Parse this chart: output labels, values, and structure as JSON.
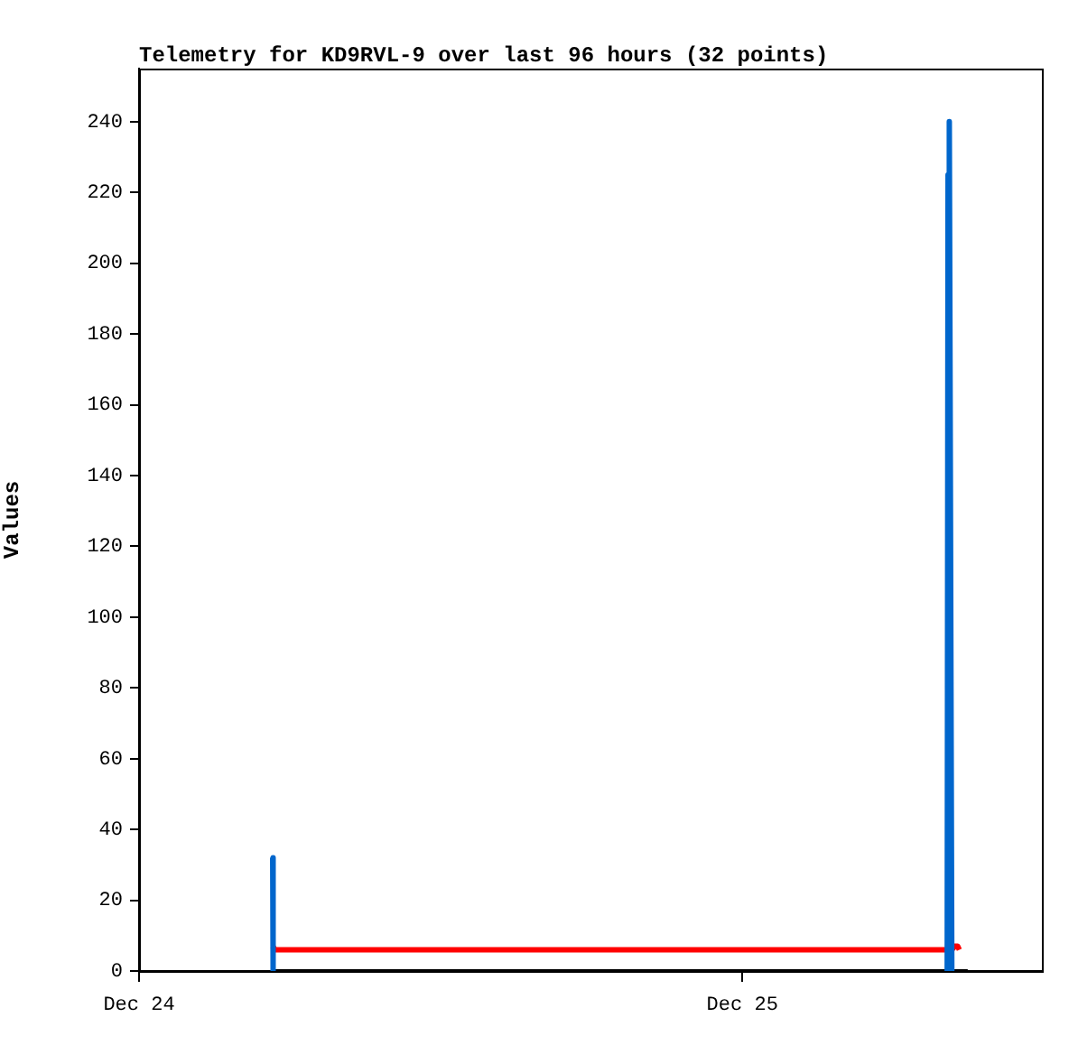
{
  "chart_data": {
    "type": "line",
    "title": "Telemetry for KD9RVL-9 over last 96 hours (32 points)",
    "ylabel": "Values",
    "series": [
      {
        "color": "#0066cc",
        "x": [
          "--12-24T05:19",
          "--12-24T05:20",
          "--12-24T06:00",
          "--12-25T08:09",
          "--12-25T08:11",
          "--12-25T08:14",
          "--12-25T08:17",
          "--12-25T08:20"
        ],
        "values": [
          32,
          0,
          null,
          0,
          225,
          240,
          121,
          0
        ]
      },
      {
        "color": "#ff0000",
        "x": [
          "--12-24T05:19",
          "--12-24T05:23",
          "--12-24T05:25",
          "--12-25T08:20",
          "--12-25T08:27",
          "--12-25T08:34",
          "--12-25T08:38"
        ],
        "values": [
          7,
          7,
          6,
          6,
          7,
          7,
          6
        ]
      },
      {
        "color": "#000000",
        "x": [
          "--12-24T05:19",
          "--12-25T08:58"
        ],
        "values": [
          0,
          0
        ]
      }
    ],
    "xlim": [
      "--12-24T00:00",
      "--12-25T11:55"
    ],
    "xticks": [
      {
        "value": "--12-24",
        "label": "Dec 24"
      },
      {
        "value": "--12-25",
        "label": "Dec 25"
      }
    ],
    "ylim": [
      0,
      255
    ],
    "yticks": [
      0,
      20,
      40,
      60,
      80,
      100,
      120,
      140,
      160,
      180,
      200,
      220,
      240
    ],
    "grid": false,
    "legend": false,
    "marker": "none",
    "line_style": "solid"
  }
}
